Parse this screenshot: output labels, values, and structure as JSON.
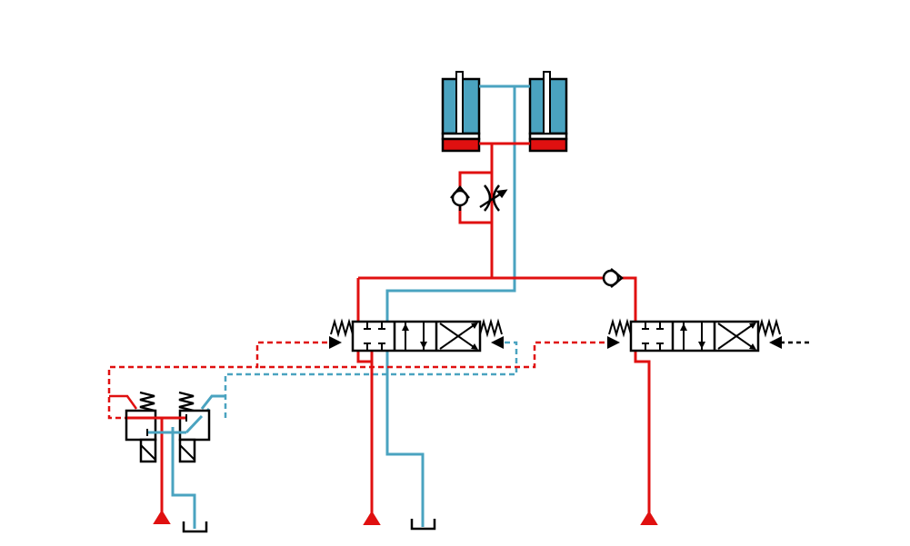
{
  "diagram": {
    "type": "hydraulic-circuit",
    "colors": {
      "pressure": "#e01010",
      "return": "#4aa3c0",
      "cylinder_fill": "#4aa3c0",
      "symbol_stroke": "#000000",
      "background": "#ffffff"
    },
    "components": [
      {
        "id": "cylinder-left",
        "kind": "double-acting-cylinder"
      },
      {
        "id": "cylinder-right",
        "kind": "double-acting-cylinder"
      },
      {
        "id": "check-valve-upper",
        "kind": "check-valve"
      },
      {
        "id": "throttle-valve",
        "kind": "adjustable-throttle"
      },
      {
        "id": "check-valve-right",
        "kind": "check-valve"
      },
      {
        "id": "directional-valve-left",
        "kind": "4-3-directional-valve"
      },
      {
        "id": "directional-valve-right",
        "kind": "4-3-directional-valve"
      },
      {
        "id": "pilot-valve-pair",
        "kind": "spring-return-pilot-valves"
      },
      {
        "id": "pressure-source-1",
        "kind": "pressure-source"
      },
      {
        "id": "pressure-source-2",
        "kind": "pressure-source"
      },
      {
        "id": "pressure-source-3",
        "kind": "pressure-source"
      },
      {
        "id": "tank-1",
        "kind": "tank"
      },
      {
        "id": "tank-2",
        "kind": "tank"
      }
    ]
  }
}
